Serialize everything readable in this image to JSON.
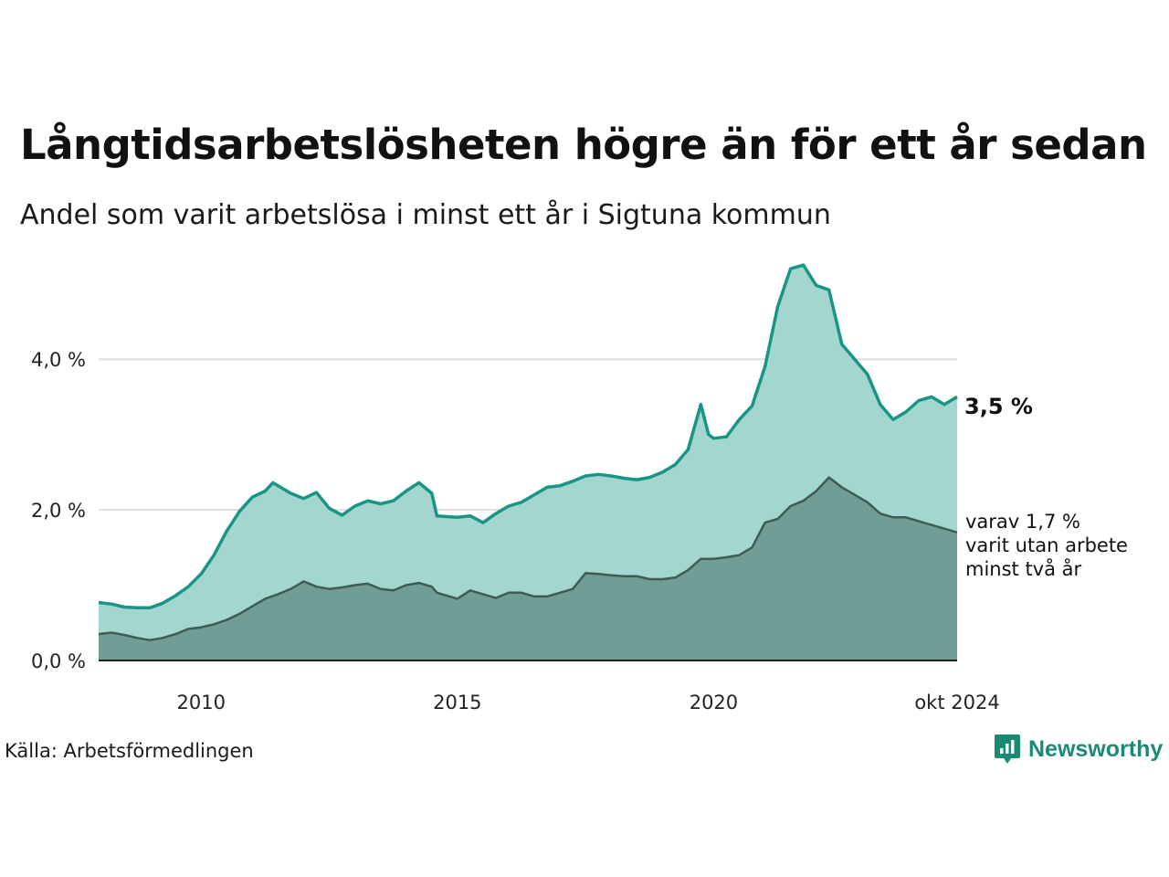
{
  "header": {
    "title": "Långtidsarbetslösheten högre än för ett år sedan",
    "subtitle": "Andel som varit arbetslösa i minst ett år i Sigtuna kommun"
  },
  "footer": {
    "source": "Källa: Arbetsförmedlingen",
    "brand": "Newsworthy"
  },
  "colors": {
    "series1_line": "#1a9585",
    "series1_fill": "#a3d6cf",
    "series2_line": "#3d5c54",
    "series2_fill": "#709e97",
    "grid": "#dddddd"
  },
  "chart_data": {
    "type": "area",
    "ylim": [
      0,
      5.3
    ],
    "yticks": [
      0,
      2,
      4
    ],
    "ytick_labels": [
      "0,0 %",
      "2,0 %",
      "4,0 %"
    ],
    "xlim": [
      2008.0,
      2024.75
    ],
    "xticks": [
      2010,
      2015,
      2020,
      2024.75
    ],
    "xtick_labels": [
      "2010",
      "2015",
      "2020",
      "okt 2024"
    ],
    "annotations": {
      "end_value": "3,5 %",
      "secondary_lines": [
        "varav 1,7 %",
        "varit utan arbete",
        "minst två år"
      ]
    },
    "series": [
      {
        "name": "Minst ett år",
        "points": [
          [
            2008.0,
            0.77
          ],
          [
            2008.25,
            0.75
          ],
          [
            2008.5,
            0.71
          ],
          [
            2008.75,
            0.7
          ],
          [
            2009.0,
            0.7
          ],
          [
            2009.25,
            0.76
          ],
          [
            2009.5,
            0.86
          ],
          [
            2009.75,
            0.98
          ],
          [
            2010.0,
            1.15
          ],
          [
            2010.25,
            1.4
          ],
          [
            2010.5,
            1.72
          ],
          [
            2010.75,
            1.98
          ],
          [
            2011.0,
            2.17
          ],
          [
            2011.25,
            2.25
          ],
          [
            2011.4,
            2.36
          ],
          [
            2011.75,
            2.22
          ],
          [
            2012.0,
            2.15
          ],
          [
            2012.25,
            2.23
          ],
          [
            2012.5,
            2.02
          ],
          [
            2012.75,
            1.93
          ],
          [
            2013.0,
            2.05
          ],
          [
            2013.25,
            2.12
          ],
          [
            2013.5,
            2.08
          ],
          [
            2013.75,
            2.12
          ],
          [
            2014.0,
            2.25
          ],
          [
            2014.25,
            2.36
          ],
          [
            2014.5,
            2.22
          ],
          [
            2014.6,
            1.92
          ],
          [
            2015.0,
            1.9
          ],
          [
            2015.25,
            1.92
          ],
          [
            2015.5,
            1.83
          ],
          [
            2015.75,
            1.95
          ],
          [
            2016.0,
            2.05
          ],
          [
            2016.25,
            2.1
          ],
          [
            2016.5,
            2.2
          ],
          [
            2016.75,
            2.3
          ],
          [
            2017.0,
            2.32
          ],
          [
            2017.25,
            2.38
          ],
          [
            2017.5,
            2.45
          ],
          [
            2017.75,
            2.47
          ],
          [
            2018.0,
            2.45
          ],
          [
            2018.25,
            2.42
          ],
          [
            2018.5,
            2.4
          ],
          [
            2018.75,
            2.43
          ],
          [
            2019.0,
            2.5
          ],
          [
            2019.25,
            2.6
          ],
          [
            2019.5,
            2.8
          ],
          [
            2019.75,
            3.4
          ],
          [
            2019.9,
            3.0
          ],
          [
            2020.0,
            2.95
          ],
          [
            2020.25,
            2.97
          ],
          [
            2020.5,
            3.2
          ],
          [
            2020.75,
            3.38
          ],
          [
            2021.0,
            3.9
          ],
          [
            2021.25,
            4.7
          ],
          [
            2021.5,
            5.2
          ],
          [
            2021.75,
            5.25
          ],
          [
            2022.0,
            4.98
          ],
          [
            2022.25,
            4.92
          ],
          [
            2022.5,
            4.2
          ],
          [
            2022.75,
            4.0
          ],
          [
            2023.0,
            3.8
          ],
          [
            2023.25,
            3.4
          ],
          [
            2023.5,
            3.2
          ],
          [
            2023.75,
            3.3
          ],
          [
            2024.0,
            3.45
          ],
          [
            2024.25,
            3.5
          ],
          [
            2024.5,
            3.4
          ],
          [
            2024.75,
            3.5
          ]
        ]
      },
      {
        "name": "Minst två år",
        "points": [
          [
            2008.0,
            0.35
          ],
          [
            2008.25,
            0.37
          ],
          [
            2008.5,
            0.34
          ],
          [
            2008.75,
            0.3
          ],
          [
            2009.0,
            0.27
          ],
          [
            2009.25,
            0.3
          ],
          [
            2009.5,
            0.35
          ],
          [
            2009.75,
            0.42
          ],
          [
            2010.0,
            0.44
          ],
          [
            2010.25,
            0.48
          ],
          [
            2010.5,
            0.54
          ],
          [
            2010.75,
            0.62
          ],
          [
            2011.0,
            0.72
          ],
          [
            2011.25,
            0.82
          ],
          [
            2011.5,
            0.88
          ],
          [
            2011.75,
            0.95
          ],
          [
            2012.0,
            1.05
          ],
          [
            2012.25,
            0.98
          ],
          [
            2012.5,
            0.95
          ],
          [
            2012.75,
            0.97
          ],
          [
            2013.0,
            1.0
          ],
          [
            2013.25,
            1.02
          ],
          [
            2013.5,
            0.95
          ],
          [
            2013.75,
            0.93
          ],
          [
            2014.0,
            1.0
          ],
          [
            2014.25,
            1.03
          ],
          [
            2014.5,
            0.98
          ],
          [
            2014.6,
            0.9
          ],
          [
            2015.0,
            0.82
          ],
          [
            2015.25,
            0.93
          ],
          [
            2015.5,
            0.88
          ],
          [
            2015.75,
            0.83
          ],
          [
            2016.0,
            0.9
          ],
          [
            2016.25,
            0.9
          ],
          [
            2016.5,
            0.85
          ],
          [
            2016.75,
            0.85
          ],
          [
            2017.0,
            0.9
          ],
          [
            2017.25,
            0.95
          ],
          [
            2017.5,
            1.16
          ],
          [
            2017.75,
            1.15
          ],
          [
            2018.0,
            1.13
          ],
          [
            2018.25,
            1.12
          ],
          [
            2018.5,
            1.12
          ],
          [
            2018.75,
            1.08
          ],
          [
            2019.0,
            1.08
          ],
          [
            2019.25,
            1.1
          ],
          [
            2019.5,
            1.2
          ],
          [
            2019.75,
            1.35
          ],
          [
            2020.0,
            1.35
          ],
          [
            2020.25,
            1.37
          ],
          [
            2020.5,
            1.4
          ],
          [
            2020.75,
            1.5
          ],
          [
            2021.0,
            1.83
          ],
          [
            2021.25,
            1.88
          ],
          [
            2021.5,
            2.05
          ],
          [
            2021.75,
            2.12
          ],
          [
            2022.0,
            2.25
          ],
          [
            2022.25,
            2.43
          ],
          [
            2022.5,
            2.3
          ],
          [
            2022.75,
            2.2
          ],
          [
            2023.0,
            2.1
          ],
          [
            2023.25,
            1.95
          ],
          [
            2023.5,
            1.9
          ],
          [
            2023.75,
            1.9
          ],
          [
            2024.0,
            1.85
          ],
          [
            2024.25,
            1.8
          ],
          [
            2024.5,
            1.75
          ],
          [
            2024.75,
            1.7
          ]
        ]
      }
    ]
  }
}
